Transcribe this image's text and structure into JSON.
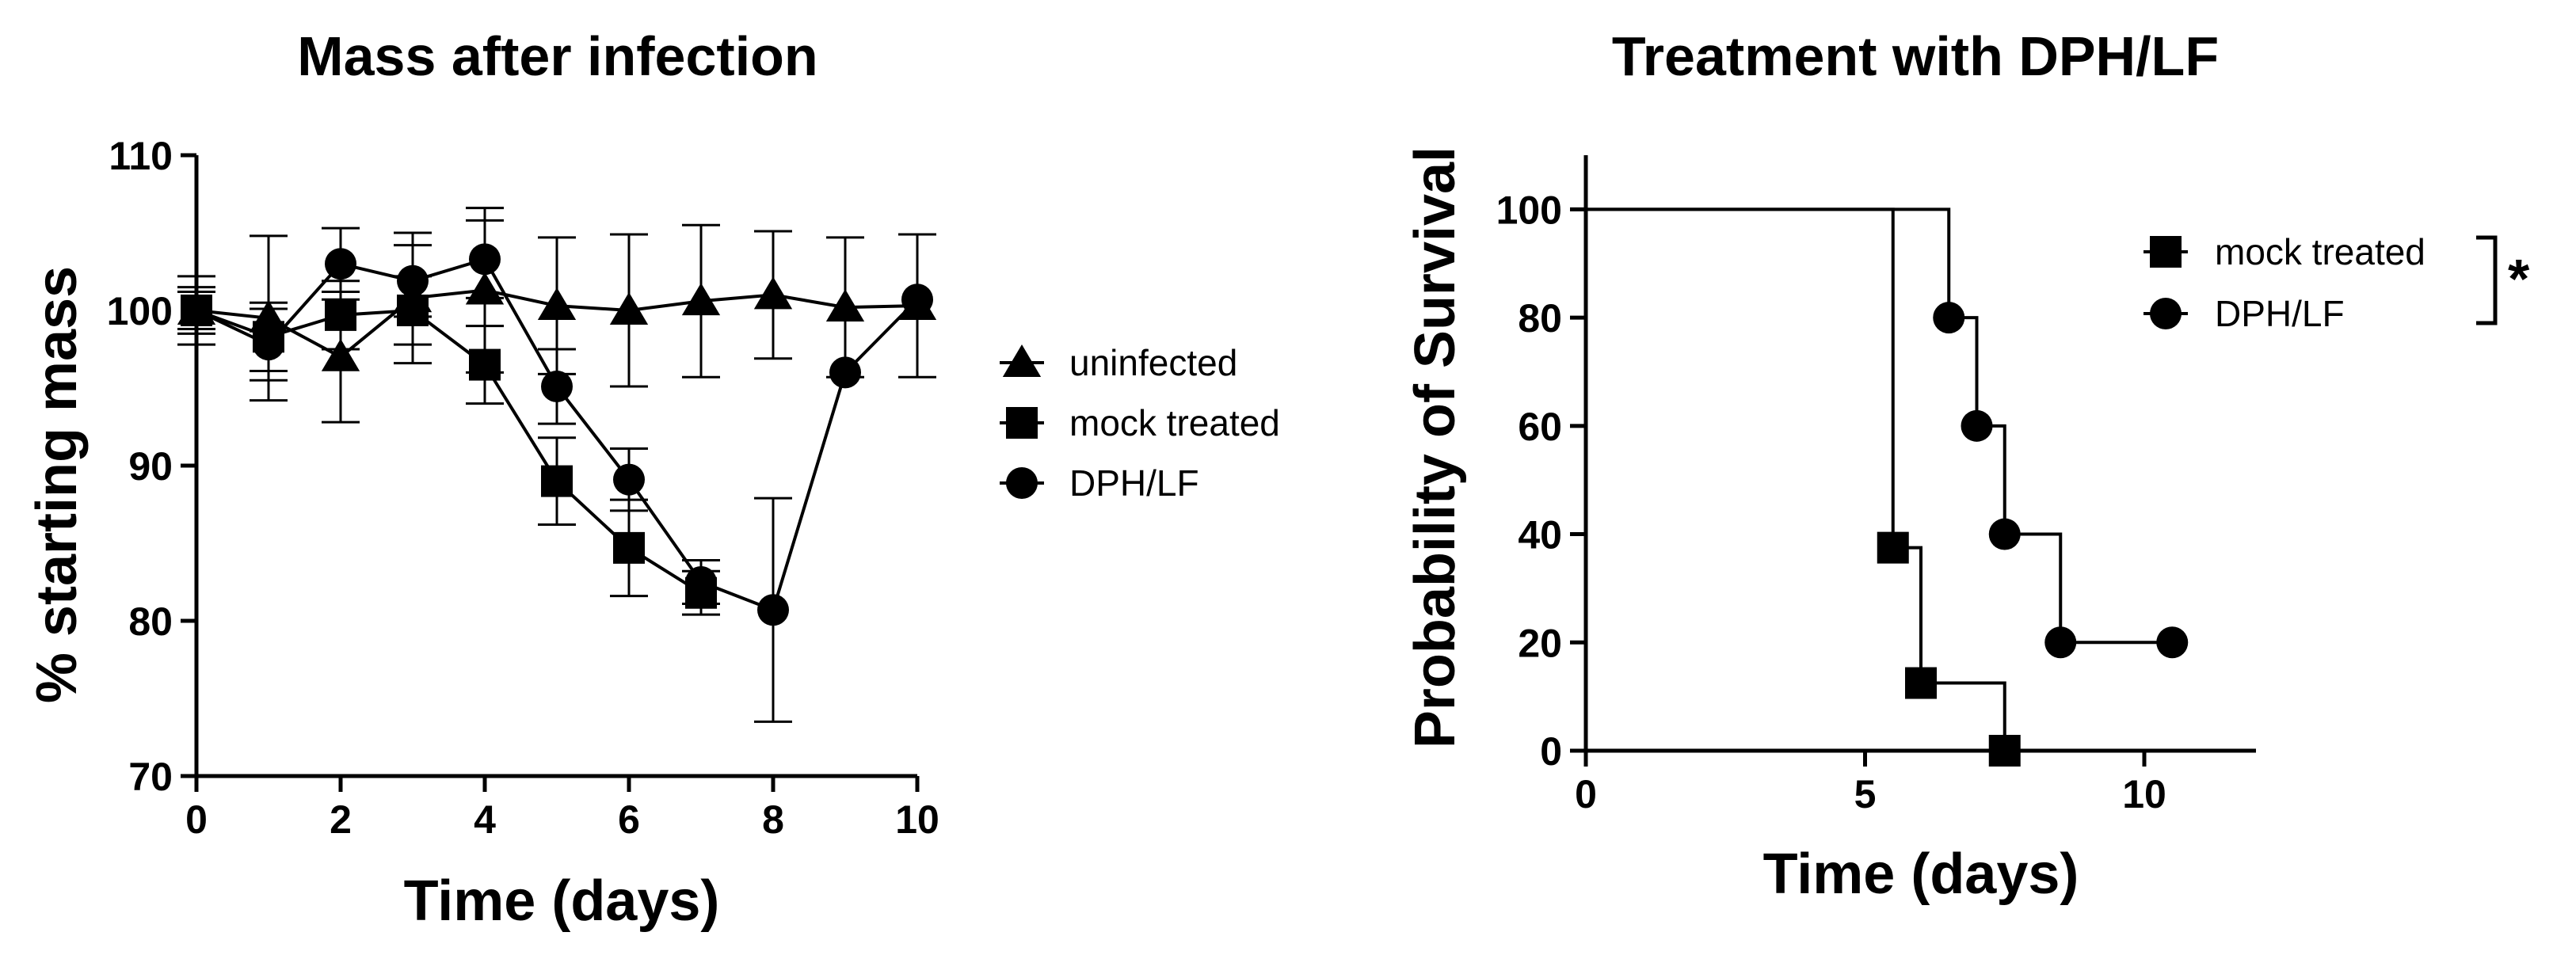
{
  "chart_data": [
    {
      "type": "line",
      "title": "Mass after infection",
      "xlabel": "Time (days)",
      "ylabel": "% starting mass",
      "xlim": [
        0,
        10
      ],
      "ylim": [
        70,
        110
      ],
      "xticks": [
        0,
        2,
        4,
        6,
        8,
        10
      ],
      "yticks": [
        70,
        80,
        90,
        100,
        110
      ],
      "series": [
        {
          "name": "uninfected",
          "marker": "triangle",
          "x": [
            0,
            1,
            2,
            3,
            4,
            5,
            6,
            7,
            8,
            9,
            10
          ],
          "y": [
            100,
            99.5,
            97,
            100.8,
            101.3,
            100.3,
            100,
            100.6,
            101,
            100.2,
            100.3
          ],
          "err": [
            2.2,
            5.3,
            4.2,
            4.2,
            5.3,
            4.4,
            4.9,
            4.9,
            4.1,
            4.5,
            4.6
          ]
        },
        {
          "name": "mock treated",
          "marker": "square",
          "x": [
            0,
            1,
            2,
            3,
            4,
            5,
            6,
            7
          ],
          "y": [
            100,
            98.3,
            99.7,
            100,
            96.5,
            89,
            84.7,
            81.8
          ],
          "err": [
            1.5,
            2.2,
            2.2,
            2.2,
            2.5,
            2.8,
            3.1,
            1.4
          ]
        },
        {
          "name": "DPH/LF",
          "marker": "circle",
          "x": [
            0,
            1,
            2,
            3,
            4,
            5,
            6,
            7,
            8,
            9,
            10
          ],
          "y": [
            100,
            97.8,
            103,
            101.9,
            103.3,
            95.1,
            89.1,
            82.5,
            80.7,
            96,
            100.7
          ],
          "err": [
            1.2,
            2.3,
            2.3,
            2.3,
            2.5,
            2.4,
            2.0,
            1.4,
            7.2,
            0,
            0
          ]
        }
      ],
      "legend": [
        "uninfected",
        "mock treated",
        "DPH/LF"
      ],
      "legend_position": "right"
    },
    {
      "type": "step",
      "title": "Treatment with DPH/LF",
      "xlabel": "Time (days)",
      "ylabel": "Probability of Survival",
      "xlim": [
        0,
        12
      ],
      "ylim": [
        0,
        110
      ],
      "xticks": [
        0,
        5,
        10
      ],
      "yticks": [
        0,
        20,
        40,
        60,
        80,
        100
      ],
      "series": [
        {
          "name": "mock treated",
          "marker": "square",
          "steps": [
            [
              0,
              100
            ],
            [
              5.5,
              37.5
            ],
            [
              6,
              12.5
            ],
            [
              7.5,
              0
            ]
          ],
          "markers": [
            [
              5.5,
              37.5
            ],
            [
              6,
              12.5
            ],
            [
              7.5,
              0
            ]
          ]
        },
        {
          "name": "DPH/LF",
          "marker": "circle",
          "steps": [
            [
              0,
              100
            ],
            [
              6.5,
              80
            ],
            [
              7,
              60
            ],
            [
              7.5,
              40
            ],
            [
              8.5,
              20
            ]
          ],
          "end_x": 10.5,
          "markers": [
            [
              6.5,
              80
            ],
            [
              7,
              60
            ],
            [
              7.5,
              40
            ],
            [
              8.5,
              20
            ],
            [
              10.5,
              20
            ]
          ]
        }
      ],
      "legend": [
        "mock treated",
        "DPH/LF"
      ],
      "legend_position": "top-right",
      "significance": "*"
    }
  ]
}
